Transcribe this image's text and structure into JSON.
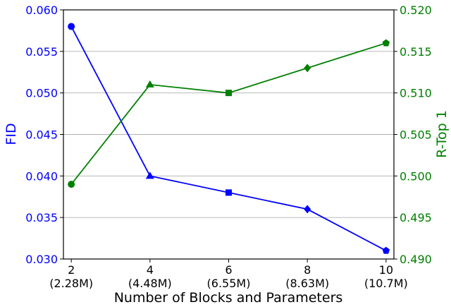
{
  "chart_data": {
    "type": "line",
    "xlabel": "Number of Blocks and Parameters",
    "x": [
      2,
      4,
      6,
      8,
      10
    ],
    "x_tick_labels": [
      {
        "top": "2",
        "bottom": "(2.28M)"
      },
      {
        "top": "4",
        "bottom": "(4.48M)"
      },
      {
        "top": "6",
        "bottom": "(6.55M)"
      },
      {
        "top": "8",
        "bottom": "(8.63M)"
      },
      {
        "top": "10",
        "bottom": "(10.7M)"
      }
    ],
    "y_left": {
      "label": "FID",
      "color": "#0000ff",
      "ylim": [
        0.03,
        0.06
      ],
      "ticks": [
        "0.030",
        "0.035",
        "0.040",
        "0.045",
        "0.050",
        "0.055",
        "0.060"
      ]
    },
    "y_right": {
      "label": "R-Top 1",
      "color": "#008000",
      "ylim": [
        0.49,
        0.52
      ],
      "ticks": [
        "0.490",
        "0.495",
        "0.500",
        "0.505",
        "0.510",
        "0.515",
        "0.520"
      ]
    },
    "series": [
      {
        "name": "FID",
        "axis": "left",
        "color": "#0000ff",
        "values": [
          0.058,
          0.04,
          0.038,
          0.036,
          0.031
        ],
        "markers": [
          "circle",
          "triangle",
          "square",
          "diamond",
          "pentagon"
        ]
      },
      {
        "name": "R-Top 1",
        "axis": "right",
        "color": "#008000",
        "values": [
          0.499,
          0.511,
          0.51,
          0.513,
          0.516
        ],
        "markers": [
          "circle",
          "triangle",
          "square",
          "diamond",
          "pentagon"
        ]
      }
    ],
    "grid": "horizontal",
    "legend": "none"
  }
}
